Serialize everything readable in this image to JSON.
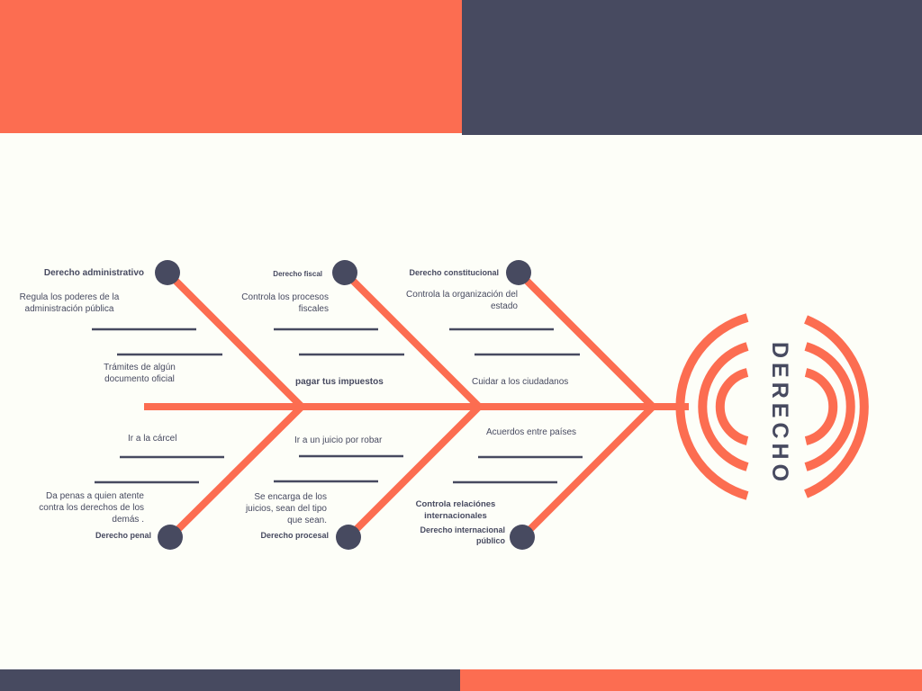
{
  "title": "DERECHO",
  "colors": {
    "accent": "#fc6d51",
    "dark": "#474a60",
    "background": "#fdfef8"
  },
  "branches": {
    "top": [
      {
        "name": "Derecho administrativo",
        "description": "Regula los poderes de la administración pública",
        "note": "Trámites de algún documento oficial"
      },
      {
        "name": "Derecho fiscal",
        "description": "Controla los procesos fiscales",
        "note": "pagar tus impuestos"
      },
      {
        "name": "Derecho constitucional",
        "description": "Controla la organización del estado",
        "note": "Cuidar a los ciudadanos"
      }
    ],
    "bottom": [
      {
        "name": "Derecho penal",
        "description": "Da penas a quien atente contra los derechos de los demás .",
        "note": "Ir a la cárcel"
      },
      {
        "name": "Derecho procesal",
        "description": "Se encarga de los juicios, sean del tipo que sean.",
        "note": "Ir a un juicio por robar"
      },
      {
        "name": "Derecho internacional público",
        "description": "Controla relaciónes internacionales",
        "note": "Acuerdos entre países"
      }
    ]
  }
}
